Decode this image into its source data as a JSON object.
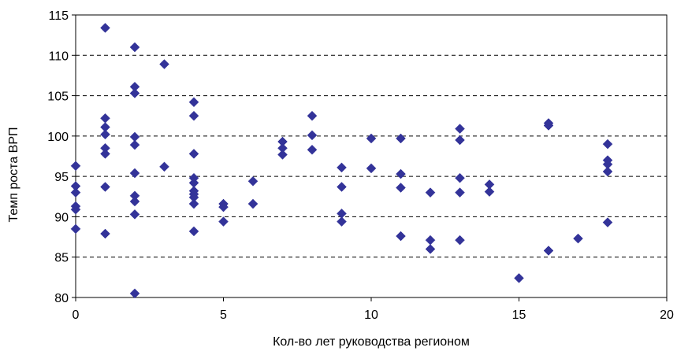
{
  "chart_data": {
    "type": "scatter",
    "title": "",
    "xlabel": "Кол-во лет руководства регионом",
    "ylabel": "Темп роста ВРП",
    "xlim": [
      0,
      20
    ],
    "ylim": [
      80,
      115
    ],
    "xticks": [
      0,
      5,
      10,
      15,
      20
    ],
    "yticks": [
      80,
      85,
      90,
      95,
      100,
      105,
      110,
      115
    ],
    "grid": "horizontal dashed",
    "legend": "none",
    "marker": "diamond",
    "marker_color": "#333399",
    "points": [
      {
        "x": 0,
        "y": 96.3
      },
      {
        "x": 0,
        "y": 93.8
      },
      {
        "x": 0,
        "y": 93.0
      },
      {
        "x": 0,
        "y": 91.3
      },
      {
        "x": 0,
        "y": 90.9
      },
      {
        "x": 0,
        "y": 88.5
      },
      {
        "x": 1,
        "y": 113.4
      },
      {
        "x": 1,
        "y": 102.2
      },
      {
        "x": 1,
        "y": 101.1
      },
      {
        "x": 1,
        "y": 100.2
      },
      {
        "x": 1,
        "y": 98.5
      },
      {
        "x": 1,
        "y": 97.8
      },
      {
        "x": 1,
        "y": 93.7
      },
      {
        "x": 1,
        "y": 87.9
      },
      {
        "x": 2,
        "y": 111.0
      },
      {
        "x": 2,
        "y": 106.1
      },
      {
        "x": 2,
        "y": 105.3
      },
      {
        "x": 2,
        "y": 99.9
      },
      {
        "x": 2,
        "y": 98.9
      },
      {
        "x": 2,
        "y": 95.4
      },
      {
        "x": 2,
        "y": 92.6
      },
      {
        "x": 2,
        "y": 91.9
      },
      {
        "x": 2,
        "y": 90.3
      },
      {
        "x": 2,
        "y": 80.5
      },
      {
        "x": 3,
        "y": 108.9
      },
      {
        "x": 3,
        "y": 96.2
      },
      {
        "x": 4,
        "y": 104.2
      },
      {
        "x": 4,
        "y": 102.5
      },
      {
        "x": 4,
        "y": 97.8
      },
      {
        "x": 4,
        "y": 94.8
      },
      {
        "x": 4,
        "y": 94.2
      },
      {
        "x": 4,
        "y": 93.2
      },
      {
        "x": 4,
        "y": 92.8
      },
      {
        "x": 4,
        "y": 92.4
      },
      {
        "x": 4,
        "y": 91.6
      },
      {
        "x": 4,
        "y": 88.2
      },
      {
        "x": 5,
        "y": 91.6
      },
      {
        "x": 5,
        "y": 91.2
      },
      {
        "x": 5,
        "y": 89.4
      },
      {
        "x": 6,
        "y": 94.4
      },
      {
        "x": 6,
        "y": 91.6
      },
      {
        "x": 7,
        "y": 99.3
      },
      {
        "x": 7,
        "y": 98.5
      },
      {
        "x": 7,
        "y": 97.7
      },
      {
        "x": 8,
        "y": 102.5
      },
      {
        "x": 8,
        "y": 100.1
      },
      {
        "x": 8,
        "y": 98.3
      },
      {
        "x": 9,
        "y": 96.1
      },
      {
        "x": 9,
        "y": 93.7
      },
      {
        "x": 9,
        "y": 90.4
      },
      {
        "x": 9,
        "y": 89.4
      },
      {
        "x": 10,
        "y": 99.7
      },
      {
        "x": 10,
        "y": 96.0
      },
      {
        "x": 11,
        "y": 99.7
      },
      {
        "x": 11,
        "y": 95.3
      },
      {
        "x": 11,
        "y": 93.6
      },
      {
        "x": 11,
        "y": 87.6
      },
      {
        "x": 12,
        "y": 93.0
      },
      {
        "x": 12,
        "y": 87.1
      },
      {
        "x": 12,
        "y": 86.0
      },
      {
        "x": 13,
        "y": 100.9
      },
      {
        "x": 13,
        "y": 99.5
      },
      {
        "x": 13,
        "y": 94.8
      },
      {
        "x": 13,
        "y": 93.0
      },
      {
        "x": 13,
        "y": 87.1
      },
      {
        "x": 14,
        "y": 94.0
      },
      {
        "x": 14,
        "y": 93.1
      },
      {
        "x": 15,
        "y": 82.4
      },
      {
        "x": 16,
        "y": 101.6
      },
      {
        "x": 16,
        "y": 101.3
      },
      {
        "x": 16,
        "y": 85.8
      },
      {
        "x": 17,
        "y": 87.3
      },
      {
        "x": 18,
        "y": 99.0
      },
      {
        "x": 18,
        "y": 97.0
      },
      {
        "x": 18,
        "y": 96.5
      },
      {
        "x": 18,
        "y": 95.6
      },
      {
        "x": 18,
        "y": 89.3
      }
    ]
  }
}
